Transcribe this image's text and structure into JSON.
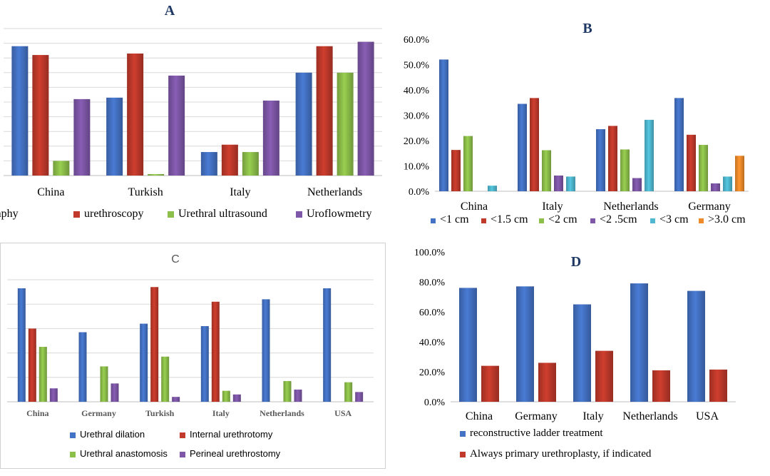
{
  "colors": {
    "blue": "#4472c4",
    "red": "#c0392b",
    "green": "#8dc04a",
    "purple": "#7e57a8",
    "cyan": "#4fb8d0",
    "orange": "#ee8a2a",
    "grid": "#d9d9d9",
    "axis": "#bfbfbf"
  },
  "chart_data": [
    {
      "type": "bar",
      "title": "A",
      "categories": [
        "China",
        "Turkish",
        "Italy",
        "Netherlands"
      ],
      "series": [
        {
          "name": "rethrography",
          "color": "blue",
          "values": [
            88,
            53,
            16,
            70
          ]
        },
        {
          "name": "urethroscopy",
          "color": "red",
          "values": [
            82,
            83,
            21,
            88
          ]
        },
        {
          "name": "Urethral ultrasound",
          "color": "green",
          "values": [
            10,
            1,
            16,
            70
          ]
        },
        {
          "name": "Uroflowmetry",
          "color": "purple",
          "values": [
            52,
            68,
            51,
            91
          ]
        }
      ],
      "ylim": [
        0,
        100
      ],
      "grid": true,
      "legend": "bottom"
    },
    {
      "type": "bar",
      "title": "B",
      "categories": [
        "China",
        "Italy",
        "Netherlands",
        "Germany"
      ],
      "series": [
        {
          "name": "<1 cm",
          "color": "blue",
          "values": [
            52,
            34.5,
            24.5,
            36.8
          ]
        },
        {
          "name": "<1.5 cm",
          "color": "red",
          "values": [
            16.3,
            36.8,
            25.8,
            22.3
          ]
        },
        {
          "name": "<2 cm",
          "color": "green",
          "values": [
            21.8,
            16.2,
            16.5,
            18.3
          ]
        },
        {
          "name": "<2 .5cm",
          "color": "purple",
          "values": [
            0,
            6.2,
            5.2,
            3.1
          ]
        },
        {
          "name": "<3 cm",
          "color": "cyan",
          "values": [
            2.2,
            5.8,
            28.2,
            5.8
          ]
        },
        {
          "name": ">3.0 cm",
          "color": "orange",
          "values": [
            0,
            0,
            0,
            14
          ]
        }
      ],
      "ylim": [
        0,
        60
      ],
      "yticks": [
        "0.0%",
        "10.0%",
        "20.0%",
        "30.0%",
        "40.0%",
        "50.0%",
        "60.0%"
      ],
      "grid": false,
      "legend": "bottom"
    },
    {
      "type": "bar",
      "title": "C",
      "categories": [
        "China",
        "Germany",
        "Turkish",
        "Italy",
        "Netherlands",
        "USA"
      ],
      "series": [
        {
          "name": "Urethral dilation",
          "color": "blue",
          "values": [
            93,
            57,
            64,
            62,
            84,
            93
          ]
        },
        {
          "name": "Internal urethrotomy",
          "color": "red",
          "values": [
            60,
            0,
            94,
            82,
            0,
            0
          ]
        },
        {
          "name": "Urethral anastomosis",
          "color": "green",
          "values": [
            45,
            29,
            37,
            9,
            17,
            16
          ]
        },
        {
          "name": "Perineal urethrostomy",
          "color": "purple",
          "values": [
            11,
            15,
            4,
            6,
            10,
            8
          ]
        }
      ],
      "ylim": [
        0,
        100
      ],
      "grid": true,
      "legend": "bottom"
    },
    {
      "type": "bar",
      "title": "D",
      "categories": [
        "China",
        "Germany",
        "Italy",
        "Netherlands",
        "USA"
      ],
      "series": [
        {
          "name": "reconstructive ladder treatment",
          "color": "blue",
          "values": [
            76,
            77,
            65,
            79,
            74
          ]
        },
        {
          "name": "Always primary urethroplasty, if indicated",
          "color": "red",
          "values": [
            24,
            26,
            34,
            21,
            21.5
          ]
        }
      ],
      "ylim": [
        0,
        100
      ],
      "yticks": [
        "0.0%",
        "20.0%",
        "40.0%",
        "60.0%",
        "80.0%",
        "100.0%"
      ],
      "grid": false,
      "legend": "bottom"
    }
  ]
}
